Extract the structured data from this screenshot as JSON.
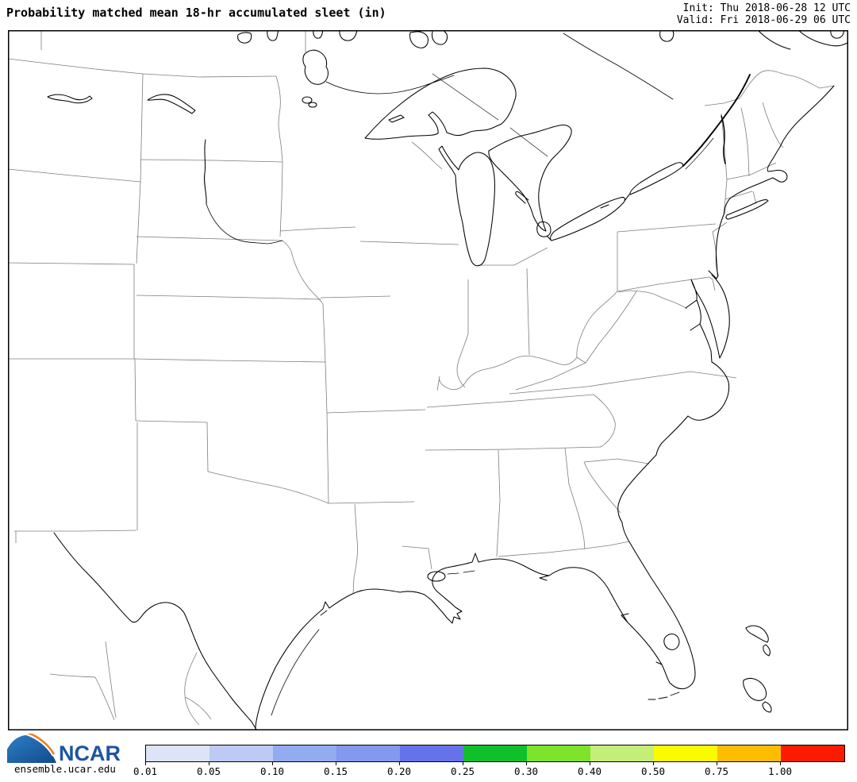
{
  "header": {
    "title": "Probability matched mean 18-hr accumulated sleet (in)",
    "init_line": "Init: Thu 2018-06-28 12 UTC",
    "valid_line": "Valid: Fri 2018-06-29 06 UTC"
  },
  "footer": {
    "logo_text": "NCAR",
    "site_url": "ensemble.ucar.edu"
  },
  "colorbar": {
    "tick_labels": [
      "0.01",
      "0.05",
      "0.10",
      "0.15",
      "0.20",
      "0.25",
      "0.30",
      "0.40",
      "0.50",
      "0.75",
      "1.00"
    ],
    "segment_colors": [
      "#dde4f8",
      "#bccaf4",
      "#93abf0",
      "#8398ee",
      "#6672e9",
      "#0fc02c",
      "#7de32b",
      "#c3ee78",
      "#fbfb00",
      "#febc00",
      "#fd1b00"
    ]
  },
  "map": {
    "border_color": "#000000",
    "state_line_color": "#7d7d7d",
    "coast_line_color": "#000000",
    "data_plotted": "none"
  },
  "logo_colors": {
    "blue_light": "#2e7fc4",
    "blue_dark": "#114a8c",
    "orange": "#f08122",
    "text_blue": "#1d55a0"
  }
}
